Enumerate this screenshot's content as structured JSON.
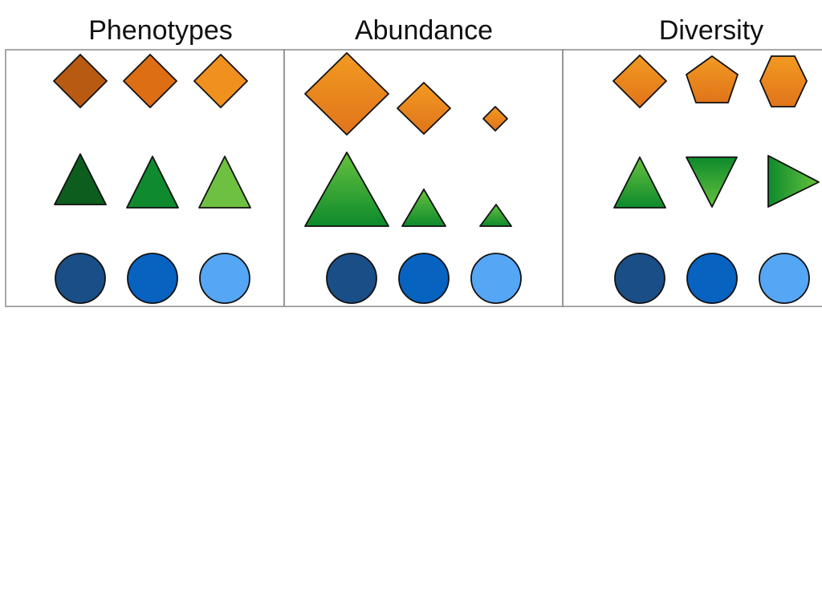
{
  "headings": [
    "Phenotypes",
    "Abundance",
    "Diversity"
  ],
  "colors": {
    "diamond_dark": "#b85a12",
    "diamond_mid": "#dd6e14",
    "diamond_light": "#f0901e",
    "orange_grad_top": "#f29a22",
    "orange_grad_bottom": "#e0741a",
    "triangle_dark": "#0d5e1e",
    "triangle_mid": "#0f8a2f",
    "triangle_light": "#6ec040",
    "green_grad_top": "#66c23e",
    "green_grad_bottom": "#0d8a2c",
    "circle_dark": "#1a4e86",
    "circle_mid": "#0762c0",
    "circle_light": "#55a6f5",
    "panel_border": "#8a8a8a"
  },
  "panels": [
    {
      "name": "phenotypes-panel",
      "rows": [
        [
          "diamond",
          "diamond",
          "diamond"
        ],
        [
          "triangle",
          "triangle",
          "triangle"
        ],
        [
          "circle",
          "circle",
          "circle"
        ]
      ]
    },
    {
      "name": "abundance-panel",
      "rows": [
        [
          "diamond",
          "diamond",
          "diamond"
        ],
        [
          "triangle",
          "triangle",
          "triangle"
        ],
        [
          "circle",
          "circle",
          "circle"
        ]
      ]
    },
    {
      "name": "diversity-panel",
      "rows": [
        [
          "diamond",
          "pentagon",
          "hexagon"
        ],
        [
          "triangle-up",
          "triangle-down",
          "triangle-right"
        ],
        [
          "circle",
          "circle",
          "circle"
        ]
      ]
    }
  ]
}
